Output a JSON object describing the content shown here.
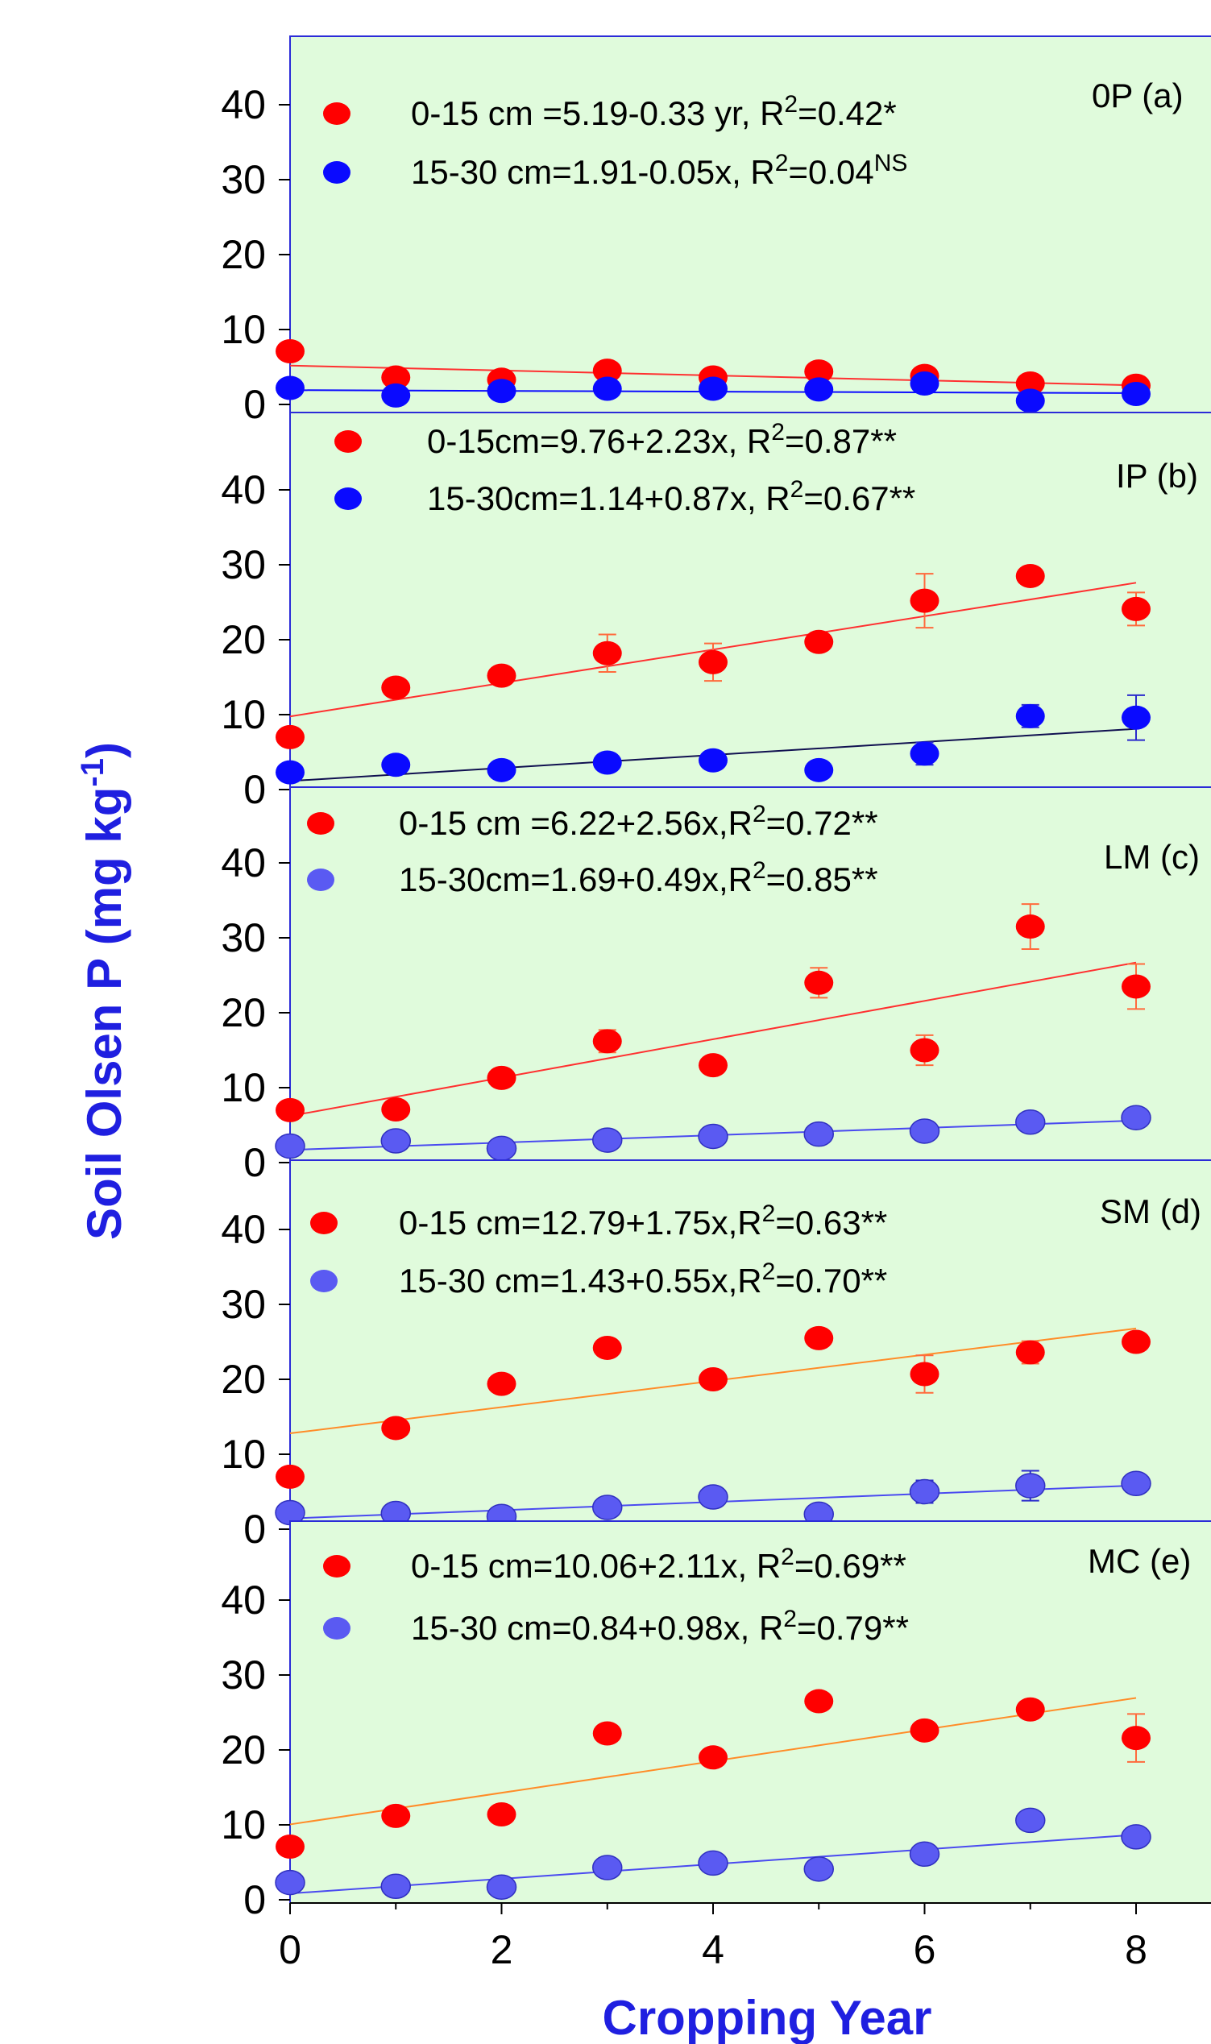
{
  "chart_data": {
    "type": "scatter",
    "xlabel": "Cropping Year",
    "ylabel": "Soil Olsen P (mg kg",
    "ylabel_sup": "-1",
    "ylabel_end": ")",
    "x_ticks": [
      0,
      2,
      4,
      6,
      8
    ],
    "xlim": [
      0,
      8
    ],
    "y_ticks": [
      0,
      10,
      20,
      30,
      40
    ],
    "ylim": [
      0,
      49
    ],
    "colors": {
      "background": "#e0fbdc",
      "frame": "#2b2bd8",
      "surface_marker": "#ff0000",
      "subsurface_marker": "#0a0aff",
      "subsurface_marker_light": "#5a5af2"
    },
    "panels": [
      {
        "label": "0P (a)",
        "legend": [
          {
            "text": "0-15 cm =5.19-0.33 yr, R",
            "sup": "2",
            "tail": "=0.42*"
          },
          {
            "text": "15-30 cm=1.91-0.05x, R",
            "sup": "2",
            "tail": "=0.04",
            "tail_sup": "NS"
          }
        ],
        "series": [
          {
            "depth": "0-15",
            "x": [
              0,
              1,
              2,
              3,
              4,
              5,
              6,
              7,
              8
            ],
            "y": [
              7.1,
              3.6,
              3.3,
              4.5,
              3.6,
              4.4,
              3.8,
              2.8,
              2.5
            ],
            "err": [
              0,
              0,
              0,
              0,
              0,
              0,
              0,
              0,
              0
            ],
            "fit": [
              5.19,
              -0.33
            ],
            "marker": "#ff0000",
            "line": "#ff3030"
          },
          {
            "depth": "15-30",
            "x": [
              0,
              1,
              2,
              3,
              4,
              5,
              6,
              7,
              8
            ],
            "y": [
              2.2,
              1.2,
              1.8,
              2.1,
              2.1,
              2.0,
              2.8,
              0.5,
              1.4
            ],
            "err": [
              0,
              0,
              0,
              0,
              0,
              0,
              0,
              0,
              0
            ],
            "fit": [
              1.91,
              -0.05
            ],
            "marker": "#0a0aff",
            "line": "#0a0aff"
          }
        ]
      },
      {
        "label": "IP (b)",
        "legend": [
          {
            "text": "0-15cm=9.76+2.23x, R",
            "sup": "2",
            "tail": "=0.87**"
          },
          {
            "text": "15-30cm=1.14+0.87x, R",
            "sup": "2",
            "tail": "=0.67**"
          }
        ],
        "series": [
          {
            "depth": "0-15",
            "x": [
              0,
              1,
              2,
              3,
              4,
              5,
              6,
              7,
              8
            ],
            "y": [
              7.0,
              13.6,
              15.2,
              18.2,
              17.0,
              19.7,
              25.2,
              28.5,
              24.1
            ],
            "err": [
              0,
              0,
              0,
              2.5,
              2.5,
              0,
              3.6,
              0,
              2.2
            ],
            "fit": [
              9.76,
              2.23
            ],
            "marker": "#ff0000",
            "line": "#ff3030"
          },
          {
            "depth": "15-30",
            "x": [
              0,
              1,
              2,
              3,
              4,
              5,
              6,
              7,
              8
            ],
            "y": [
              2.3,
              3.3,
              2.6,
              3.6,
              3.9,
              2.6,
              4.8,
              9.8,
              9.6
            ],
            "err": [
              0,
              0,
              0,
              0,
              0,
              0,
              1.5,
              1.5,
              3.0
            ],
            "fit": [
              1.14,
              0.87
            ],
            "marker": "#0a0aff",
            "line": "#101050"
          }
        ]
      },
      {
        "label": "LM (c)",
        "legend": [
          {
            "text": "0-15 cm =6.22+2.56x,R",
            "sup": "2",
            "tail": "=0.72**"
          },
          {
            "text": "15-30cm=1.69+0.49x,R",
            "sup": "2",
            "tail": "=0.85**"
          }
        ],
        "series": [
          {
            "depth": "0-15",
            "x": [
              0,
              1,
              2,
              3,
              4,
              5,
              6,
              7,
              8
            ],
            "y": [
              7.0,
              7.1,
              11.3,
              16.2,
              13.0,
              24.0,
              15.0,
              31.5,
              23.5
            ],
            "err": [
              0,
              0,
              0,
              1.5,
              0,
              2.0,
              2.0,
              3.0,
              3.0
            ],
            "fit": [
              6.22,
              2.56
            ],
            "marker": "#ff0000",
            "line": "#ff3030"
          },
          {
            "depth": "15-30",
            "x": [
              0,
              1,
              2,
              3,
              4,
              5,
              6,
              7,
              8
            ],
            "y": [
              2.2,
              2.9,
              1.9,
              3.0,
              3.5,
              3.8,
              4.2,
              5.4,
              6.0
            ],
            "err": [
              0,
              0,
              0,
              0,
              0,
              0,
              0.5,
              1.0,
              0
            ],
            "fit": [
              1.69,
              0.49
            ],
            "marker": "#5a5af2",
            "line": "#4a4af0"
          }
        ]
      },
      {
        "label": "SM (d)",
        "legend": [
          {
            "text": "0-15 cm=12.79+1.75x,R",
            "sup": "2",
            "tail": "=0.63**"
          },
          {
            "text": "15-30 cm=1.43+0.55x,R",
            "sup": "2",
            "tail": "=0.70**"
          }
        ],
        "series": [
          {
            "depth": "0-15",
            "x": [
              0,
              1,
              2,
              3,
              4,
              5,
              6,
              7,
              8
            ],
            "y": [
              7.0,
              13.5,
              19.4,
              24.2,
              20.0,
              25.5,
              20.7,
              23.6,
              25.0
            ],
            "err": [
              0,
              0,
              0,
              0,
              0,
              0,
              2.5,
              1.5,
              0
            ],
            "fit": [
              12.79,
              1.75
            ],
            "marker": "#ff0000",
            "line": "#ff8c28"
          },
          {
            "depth": "15-30",
            "x": [
              0,
              1,
              2,
              3,
              4,
              5,
              6,
              7,
              8
            ],
            "y": [
              2.2,
              2.1,
              1.7,
              2.9,
              4.3,
              2.0,
              5.0,
              5.8,
              6.1
            ],
            "err": [
              0,
              0,
              0,
              0,
              0,
              0,
              1.5,
              2.0,
              0
            ],
            "fit": [
              1.43,
              0.55
            ],
            "marker": "#5a5af2",
            "line": "#4a4af0"
          }
        ]
      },
      {
        "label": "MC (e)",
        "legend": [
          {
            "text": "0-15 cm=10.06+2.11x, R",
            "sup": "2",
            "tail": "=0.69**"
          },
          {
            "text": "15-30 cm=0.84+0.98x, R",
            "sup": "2",
            "tail": "=0.79**"
          }
        ],
        "series": [
          {
            "depth": "0-15",
            "x": [
              0,
              1,
              2,
              3,
              4,
              5,
              6,
              7,
              8
            ],
            "y": [
              7.1,
              11.2,
              11.4,
              22.2,
              19.0,
              26.5,
              22.6,
              25.4,
              21.6
            ],
            "err": [
              0,
              0,
              0,
              0,
              0,
              0,
              0,
              0,
              3.2
            ],
            "fit": [
              10.06,
              2.11
            ],
            "marker": "#ff0000",
            "line": "#ff8c28"
          },
          {
            "depth": "15-30",
            "x": [
              0,
              1,
              2,
              3,
              4,
              5,
              6,
              7,
              8
            ],
            "y": [
              2.3,
              1.8,
              1.7,
              4.3,
              4.9,
              4.1,
              6.1,
              10.6,
              8.4
            ],
            "err": [
              0,
              0,
              0,
              0,
              0,
              0,
              1.0,
              0,
              0
            ],
            "fit": [
              0.84,
              0.98
            ],
            "marker": "#5a5af2",
            "line": "#4a4af0"
          }
        ]
      }
    ]
  }
}
